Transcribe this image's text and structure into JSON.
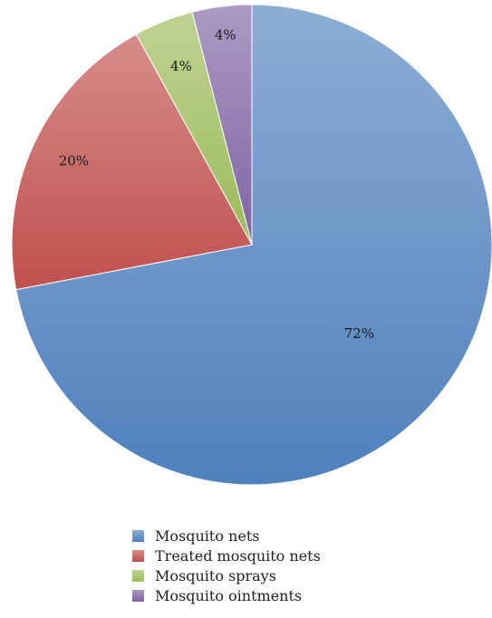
{
  "chart_data": {
    "type": "pie",
    "title": "",
    "categories": [
      "Mosquito nets",
      "Treated mosquito nets",
      "Mosquito sprays",
      "Mosquito ointments"
    ],
    "values": [
      72,
      20,
      4,
      4
    ],
    "data_labels": [
      "72%",
      "20%",
      "4%",
      "4%"
    ],
    "colors": [
      "#4f81bd",
      "#c0504d",
      "#9bbb59",
      "#8064a2"
    ],
    "legend_position": "bottom"
  }
}
